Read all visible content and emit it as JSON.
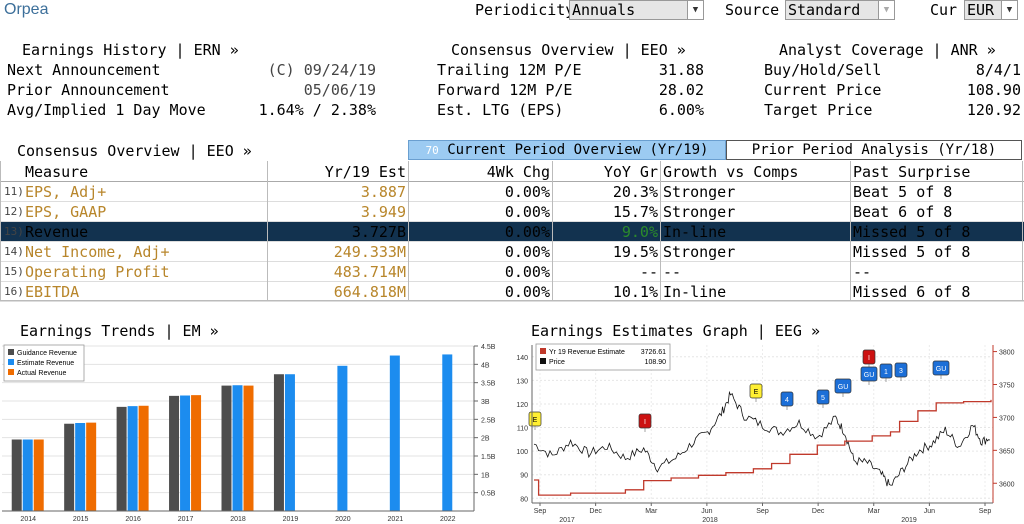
{
  "header": {
    "company": "Orpea",
    "periodicity_label": "Periodicity",
    "periodicity_value": "Annuals",
    "source_label": "Source",
    "source_value": "Standard",
    "cur_label": "Cur",
    "cur_value": "EUR"
  },
  "earnings_history": {
    "title": "Earnings History | ERN »",
    "rows": [
      {
        "label": "Next Announcement",
        "value": "(C) 09/24/19"
      },
      {
        "label": "Prior Announcement",
        "value": "05/06/19"
      },
      {
        "label": "Avg/Implied 1 Day Move",
        "value": "1.64% / 2.38%"
      }
    ]
  },
  "consensus_top": {
    "title": "Consensus Overview | EEO »",
    "rows": [
      {
        "label": "Trailing 12M P/E",
        "value": "31.88"
      },
      {
        "label": "Forward 12M P/E",
        "value": "28.02"
      },
      {
        "label": "Est. LTG (EPS)",
        "value": "6.00%"
      }
    ]
  },
  "analyst_coverage": {
    "title": "Analyst Coverage | ANR »",
    "rows": [
      {
        "label": "Buy/Hold/Sell",
        "value": "8/4/1"
      },
      {
        "label": "Current Price",
        "value": "108.90"
      },
      {
        "label": "Target Price",
        "value": "120.92"
      }
    ]
  },
  "consensus_table": {
    "title": "Consensus Overview | EEO »",
    "tab_current_num": "70",
    "tab_current": "Current Period Overview (Yr/19)",
    "tab_prior": "Prior Period Analysis (Yr/18)",
    "headers": [
      "Measure",
      "Yr/19 Est",
      "4Wk Chg",
      "YoY Gr",
      "Growth vs Comps",
      "Past Surprise"
    ],
    "rows": [
      {
        "num": "11)",
        "measure": "EPS, Adj+",
        "est": "3.887",
        "chg": "0.00%",
        "yoy": "20.3%",
        "growth": "Stronger",
        "surprise": "Beat 5 of 8"
      },
      {
        "num": "12)",
        "measure": "EPS, GAAP",
        "est": "3.949",
        "chg": "0.00%",
        "yoy": "15.7%",
        "growth": "Stronger",
        "surprise": "Beat 6 of 8"
      },
      {
        "num": "13)",
        "measure": "Revenue",
        "est": "3.727B",
        "chg": "0.00%",
        "yoy": "9.0%",
        "growth": "In-line",
        "surprise": "Missed 5 of 8"
      },
      {
        "num": "14)",
        "measure": "Net Income, Adj+",
        "est": "249.333M",
        "chg": "0.00%",
        "yoy": "19.5%",
        "growth": "Stronger",
        "surprise": "Missed 5 of 8"
      },
      {
        "num": "15)",
        "measure": "Operating Profit",
        "est": "483.714M",
        "chg": "0.00%",
        "yoy": "--",
        "growth": "--",
        "surprise": "--"
      },
      {
        "num": "16)",
        "measure": "EBITDA",
        "est": "664.818M",
        "chg": "0.00%",
        "yoy": "10.1%",
        "growth": "In-line",
        "surprise": "Missed 6 of 8"
      }
    ]
  },
  "earnings_trends": {
    "title": "Earnings Trends | EM »"
  },
  "earnings_graph": {
    "title": "Earnings Estimates Graph | EEG »"
  },
  "colors": {
    "guidance": "#4d4d4d",
    "estimate": "#1c8cef",
    "actual": "#ef6c00",
    "highlight_row": "#12324f",
    "gold_text": "#b8862b",
    "estimate_line": "#c0392b",
    "tab_active": "#9ccbf2"
  },
  "chart_data": [
    {
      "type": "bar",
      "categories": [
        "2014",
        "2015",
        "2016",
        "2017",
        "2018",
        "2019",
        "2020",
        "2021",
        "2022"
      ],
      "series": [
        {
          "name": "Guidance Revenue",
          "values": [
            1.95,
            2.38,
            2.84,
            3.14,
            3.42,
            3.73,
            null,
            null,
            null
          ]
        },
        {
          "name": "Estimate Revenue",
          "values": [
            1.95,
            2.4,
            2.86,
            3.15,
            3.43,
            3.73,
            3.96,
            4.24,
            4.27
          ]
        },
        {
          "name": "Actual Revenue",
          "values": [
            1.95,
            2.41,
            2.87,
            3.16,
            3.42,
            null,
            null,
            null,
            null
          ]
        }
      ],
      "ylim": [
        0,
        4.5
      ],
      "yticks": [
        "0.5B",
        "1B",
        "1.5B",
        "2B",
        "2.5B",
        "3B",
        "3.5B",
        "4B",
        "4.5B"
      ],
      "legend": "top-left"
    },
    {
      "type": "line",
      "x_ticks": [
        "Sep",
        "Dec",
        "Mar",
        "Jun",
        "Sep",
        "Dec",
        "Mar",
        "Jun",
        "Sep"
      ],
      "x_years": [
        "2017",
        "2018",
        "2019"
      ],
      "left_yticks": [
        "80",
        "90",
        "100",
        "110",
        "120",
        "130",
        "140"
      ],
      "right_yticks": [
        "3600",
        "3650",
        "3700",
        "3750",
        "3800"
      ],
      "left_ylim": [
        78,
        145
      ],
      "right_ylim": [
        3570,
        3810
      ],
      "series": [
        {
          "name": "Yr 19 Revenue Estimate",
          "last": "3726.61"
        },
        {
          "name": "Price",
          "last": "108.90"
        }
      ],
      "markers": [
        {
          "label": "E"
        },
        {
          "label": "I"
        },
        {
          "label": "E"
        },
        {
          "label": "4"
        },
        {
          "label": "5"
        },
        {
          "label": "GU"
        },
        {
          "label": "I"
        },
        {
          "label": "GU"
        },
        {
          "label": "1"
        },
        {
          "label": "3"
        },
        {
          "label": "GU"
        }
      ],
      "legend": "top-left"
    }
  ]
}
